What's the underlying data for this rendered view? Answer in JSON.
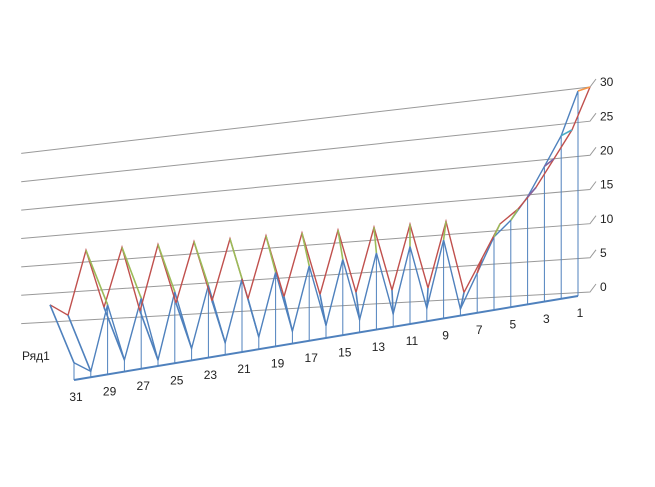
{
  "chart_data": {
    "type": "surface3d",
    "categories": [
      1,
      null,
      3,
      null,
      5,
      null,
      7,
      null,
      9,
      null,
      11,
      null,
      13,
      null,
      15,
      null,
      17,
      null,
      19,
      null,
      21,
      null,
      23,
      null,
      25,
      null,
      27,
      null,
      29,
      null,
      31
    ],
    "series": [
      {
        "name": "Ряд1",
        "values": [
          30,
          24,
          20,
          16,
          13,
          11,
          6,
          1,
          12,
          2,
          12,
          2,
          12,
          2,
          12,
          2,
          12,
          2,
          12,
          2,
          12,
          2,
          12,
          2,
          12,
          1,
          12,
          2,
          12,
          1,
          3
        ]
      }
    ],
    "zlim": [
      0,
      30
    ],
    "zticks": [
      0,
      5,
      10,
      15,
      20,
      25,
      30
    ],
    "grid": true,
    "band_colors": [
      "#4f81bd",
      "#c0504d",
      "#9bbb59",
      "#8064a2",
      "#4bacc6",
      "#f79646"
    ]
  }
}
